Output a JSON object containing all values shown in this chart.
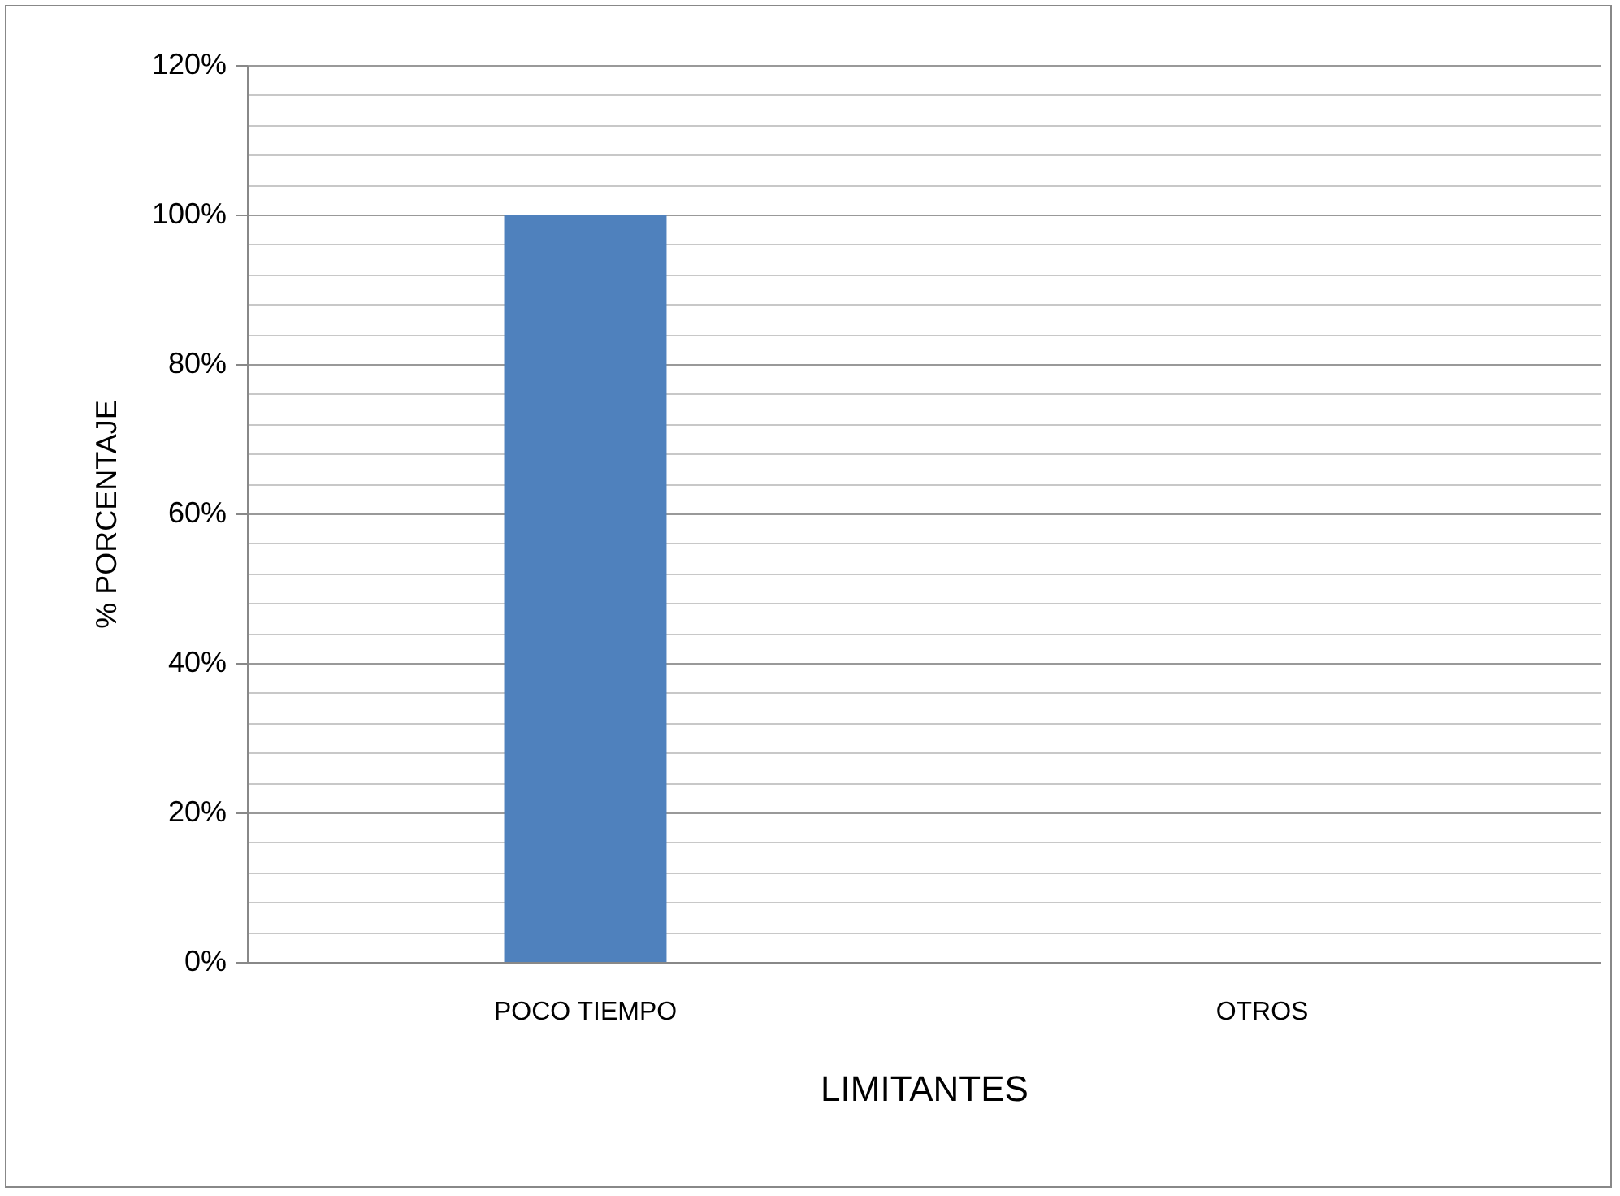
{
  "chart_data": {
    "type": "bar",
    "xlabel": "LIMITANTES",
    "ylabel": "% PORCENTAJE",
    "categories": [
      "POCO TIEMPO",
      "OTROS"
    ],
    "series": [
      {
        "color": "#4f81bd",
        "values": [
          100,
          0
        ]
      }
    ],
    "ylim": [
      0,
      120
    ],
    "yticks": [
      {
        "value": 0,
        "label": "0%"
      },
      {
        "value": 4,
        "label": null
      },
      {
        "value": 8,
        "label": null
      },
      {
        "value": 12,
        "label": null
      },
      {
        "value": 16,
        "label": null
      },
      {
        "value": 20,
        "label": "20%"
      },
      {
        "value": 24,
        "label": null
      },
      {
        "value": 28,
        "label": null
      },
      {
        "value": 32,
        "label": null
      },
      {
        "value": 36,
        "label": null
      },
      {
        "value": 40,
        "label": "40%"
      },
      {
        "value": 44,
        "label": null
      },
      {
        "value": 48,
        "label": null
      },
      {
        "value": 52,
        "label": null
      },
      {
        "value": 56,
        "label": null
      },
      {
        "value": 60,
        "label": "60%"
      },
      {
        "value": 64,
        "label": null
      },
      {
        "value": 68,
        "label": null
      },
      {
        "value": 72,
        "label": null
      },
      {
        "value": 76,
        "label": null
      },
      {
        "value": 80,
        "label": "80%"
      },
      {
        "value": 84,
        "label": null
      },
      {
        "value": 88,
        "label": null
      },
      {
        "value": 92,
        "label": null
      },
      {
        "value": 96,
        "label": null
      },
      {
        "value": 100,
        "label": "100%"
      },
      {
        "value": 104,
        "label": null
      },
      {
        "value": 108,
        "label": null
      },
      {
        "value": 112,
        "label": null
      },
      {
        "value": 116,
        "label": null
      },
      {
        "value": 120,
        "label": "120%"
      }
    ],
    "grid": "y"
  }
}
